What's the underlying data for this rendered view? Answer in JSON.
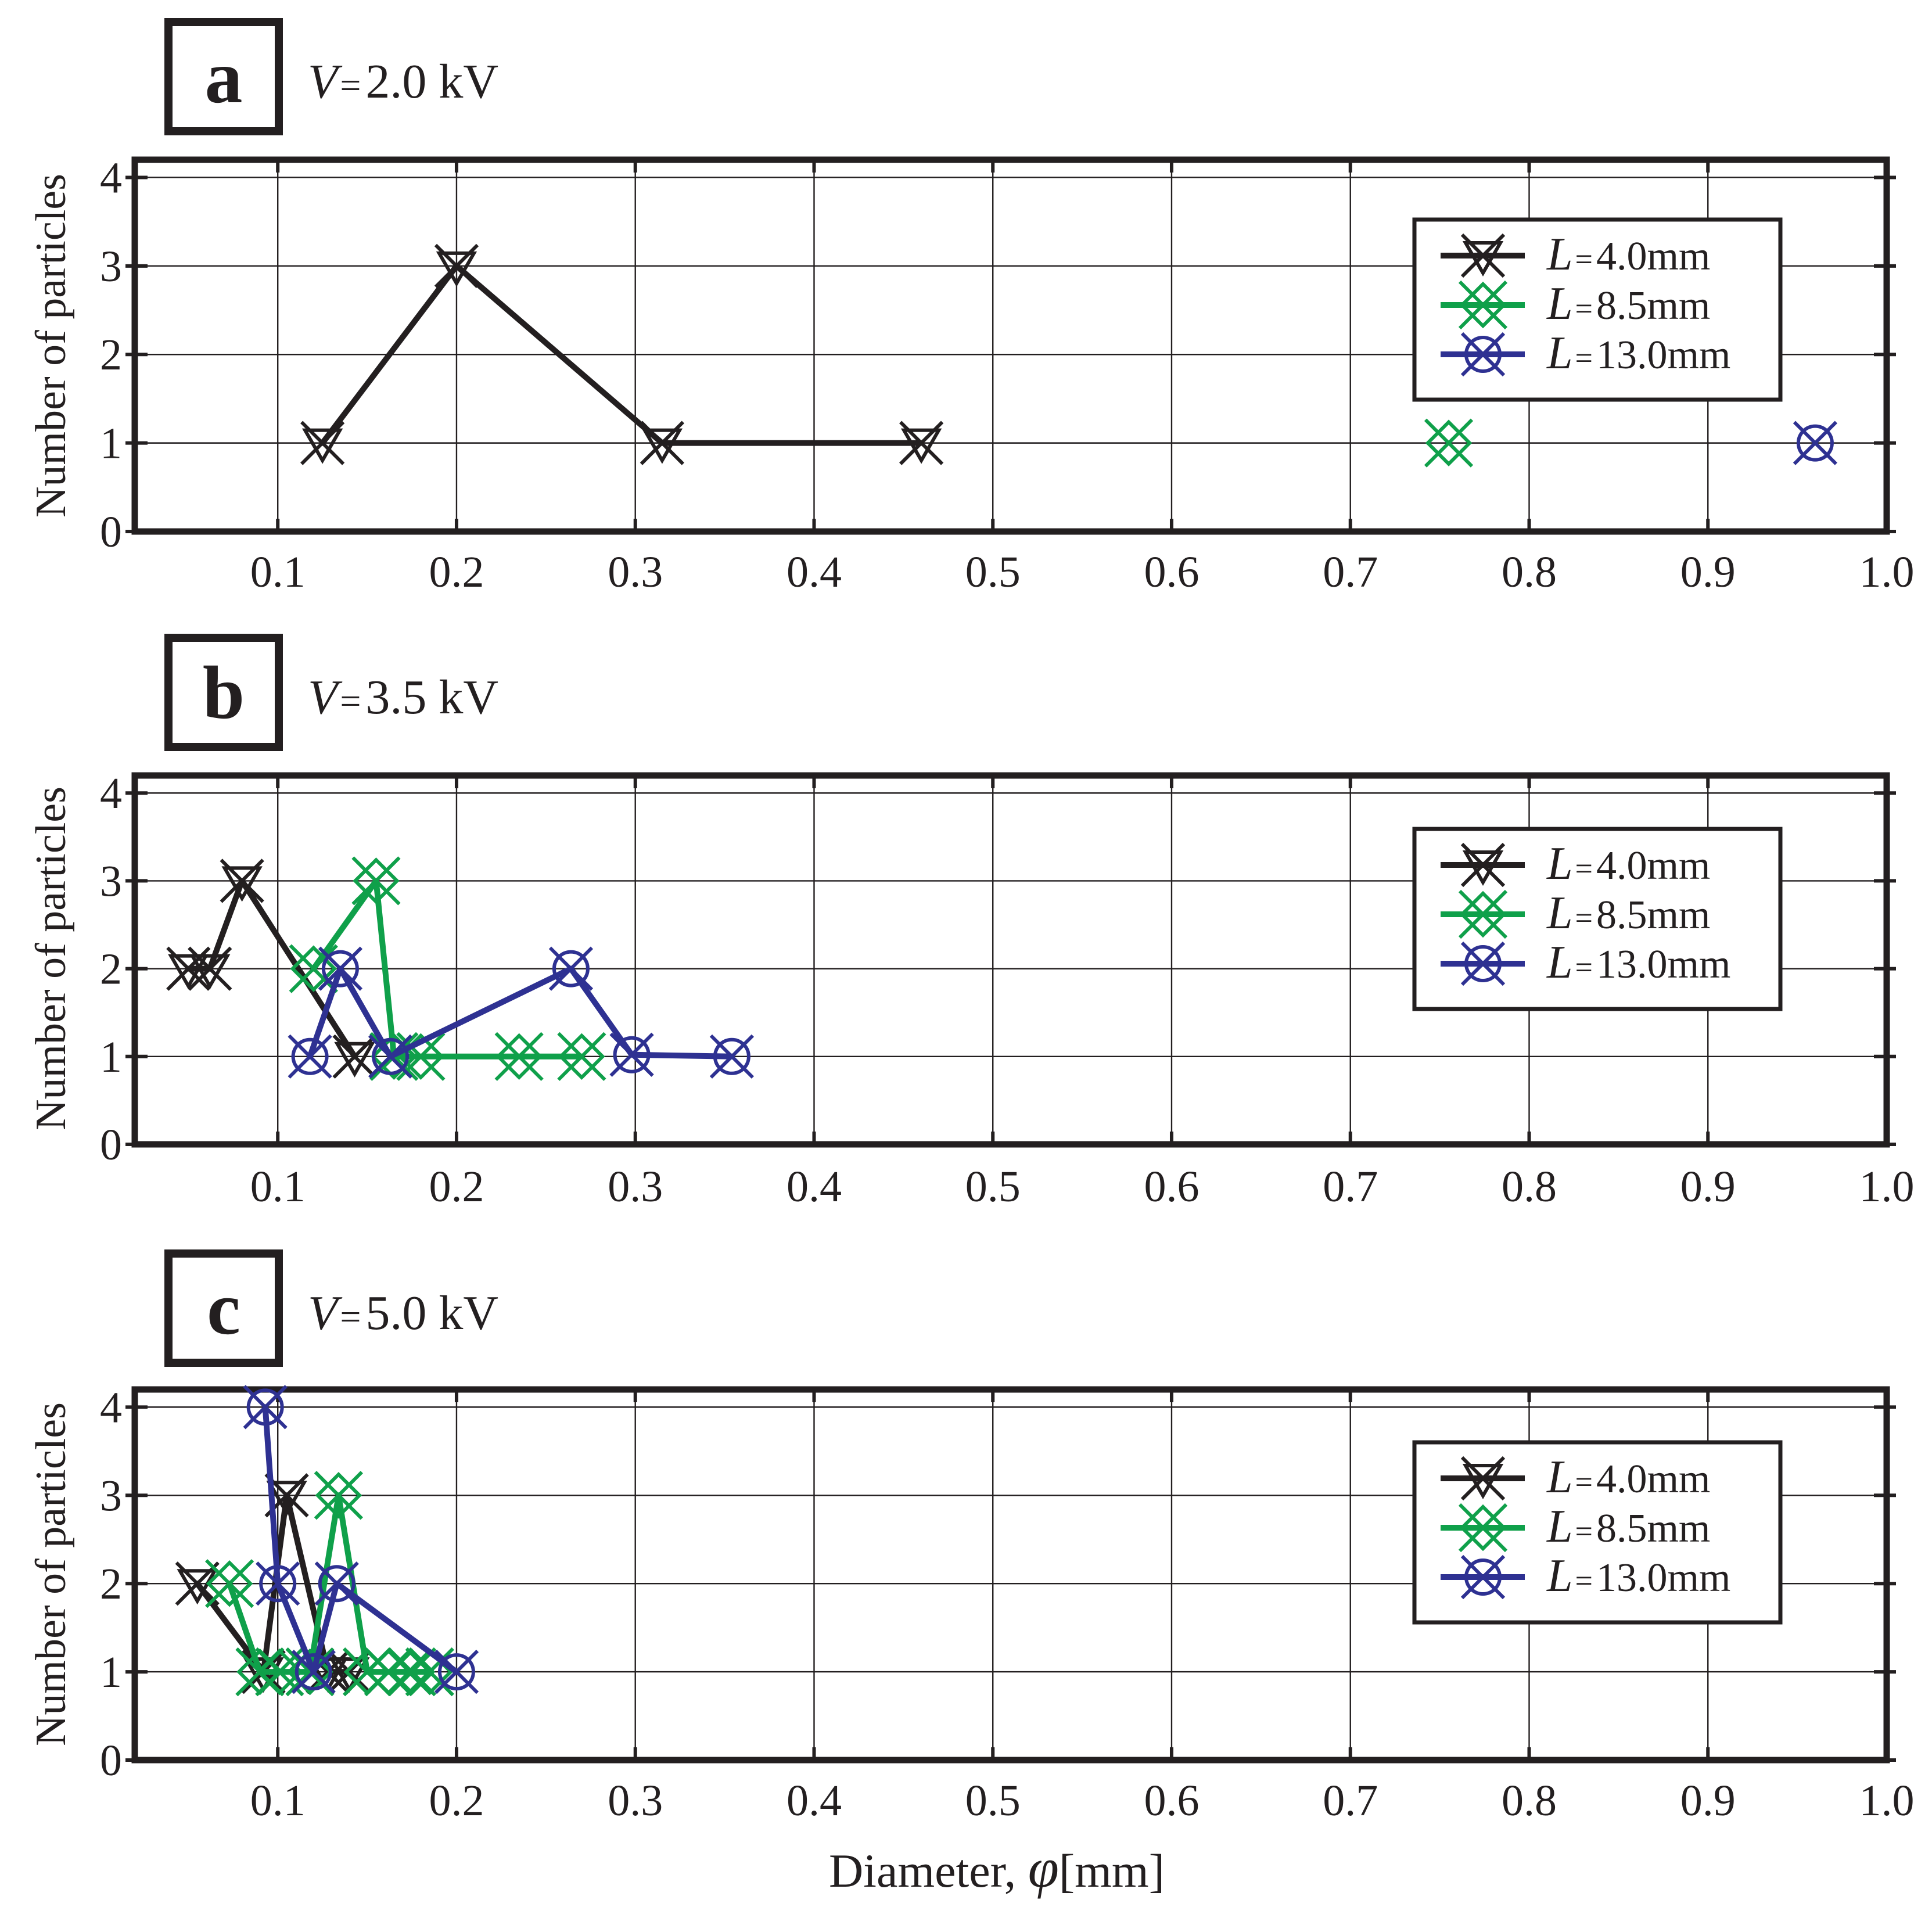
{
  "figure": {
    "xlabel_prefix": "Diameter, ",
    "xlabel_symbol": "φ",
    "xlabel_unit": "[mm]"
  },
  "colors": {
    "L4": "#231f20",
    "L8": "#0fa04a",
    "L13": "#2e3192"
  },
  "chart_data": [
    {
      "type": "line",
      "panel_label": "a",
      "voltage_symbol": "V",
      "voltage_eq": "=",
      "voltage_value": "2.0 kV",
      "ylabel": "Number of particles",
      "xlim": [
        0.02,
        1.0
      ],
      "ylim": [
        0,
        4.2
      ],
      "xticks": [
        "0.1",
        "0.2",
        "0.3",
        "0.4",
        "0.5",
        "0.6",
        "0.7",
        "0.8",
        "0.9",
        "1.0"
      ],
      "yticks": [
        "0",
        "1",
        "2",
        "3",
        "4"
      ],
      "grid": true,
      "legend_position": "top-right",
      "series": [
        {
          "name_symbol": "L",
          "name_eq": "=",
          "name_value": "4.0mm",
          "color": "#231f20",
          "marker": "star-x",
          "x": [
            0.125,
            0.2,
            0.315,
            0.46
          ],
          "y": [
            1,
            3,
            1,
            1
          ]
        },
        {
          "name_symbol": "L",
          "name_eq": "=",
          "name_value": "8.5mm",
          "color": "#0fa04a",
          "marker": "diamond-x",
          "x": [
            0.755
          ],
          "y": [
            1
          ]
        },
        {
          "name_symbol": "L",
          "name_eq": "=",
          "name_value": "13.0mm",
          "color": "#2e3192",
          "marker": "circle-x",
          "x": [
            0.96
          ],
          "y": [
            1
          ]
        }
      ]
    },
    {
      "type": "line",
      "panel_label": "b",
      "voltage_symbol": "V",
      "voltage_eq": "=",
      "voltage_value": "3.5 kV",
      "ylabel": "Number of particles",
      "xlim": [
        0.02,
        1.0
      ],
      "ylim": [
        0,
        4.2
      ],
      "xticks": [
        "0.1",
        "0.2",
        "0.3",
        "0.4",
        "0.5",
        "0.6",
        "0.7",
        "0.8",
        "0.9",
        "1.0"
      ],
      "yticks": [
        "0",
        "1",
        "2",
        "3",
        "4"
      ],
      "grid": true,
      "legend_position": "top-right",
      "series": [
        {
          "name_symbol": "L",
          "name_eq": "=",
          "name_value": "4.0mm",
          "color": "#231f20",
          "marker": "star-x",
          "x": [
            0.05,
            0.062,
            0.08,
            0.143
          ],
          "y": [
            2,
            2,
            3,
            1
          ]
        },
        {
          "name_symbol": "L",
          "name_eq": "=",
          "name_value": "8.5mm",
          "color": "#0fa04a",
          "marker": "diamond-x",
          "x": [
            0.12,
            0.155,
            0.165,
            0.18,
            0.235,
            0.27
          ],
          "y": [
            2,
            3,
            1,
            1,
            1,
            1
          ]
        },
        {
          "name_symbol": "L",
          "name_eq": "=",
          "name_value": "13.0mm",
          "color": "#2e3192",
          "marker": "circle-x",
          "x": [
            0.118,
            0.135,
            0.163,
            0.264,
            0.298,
            0.354
          ],
          "y": [
            1,
            2,
            1,
            2,
            1.02,
            1
          ]
        }
      ]
    },
    {
      "type": "line",
      "panel_label": "c",
      "voltage_symbol": "V",
      "voltage_eq": "=",
      "voltage_value": "5.0 kV",
      "ylabel": "Number of particles",
      "xlim": [
        0.02,
        1.0
      ],
      "ylim": [
        0,
        4.2
      ],
      "xticks": [
        "0.1",
        "0.2",
        "0.3",
        "0.4",
        "0.5",
        "0.6",
        "0.7",
        "0.8",
        "0.9",
        "1.0"
      ],
      "yticks": [
        "0",
        "1",
        "2",
        "3",
        "4"
      ],
      "grid": true,
      "legend_position": "top-right",
      "series": [
        {
          "name_symbol": "L",
          "name_eq": "=",
          "name_value": "4.0mm",
          "color": "#231f20",
          "marker": "star-x",
          "x": [
            0.055,
            0.092,
            0.105,
            0.128,
            0.14
          ],
          "y": [
            2,
            1,
            3,
            1,
            1
          ]
        },
        {
          "name_symbol": "L",
          "name_eq": "=",
          "name_value": "8.5mm",
          "color": "#0fa04a",
          "marker": "diamond-x",
          "x": [
            0.073,
            0.09,
            0.101,
            0.118,
            0.134,
            0.15,
            0.162,
            0.175,
            0.185
          ],
          "y": [
            2,
            1,
            1,
            1,
            3,
            1,
            1,
            1,
            1
          ]
        },
        {
          "name_symbol": "L",
          "name_eq": "=",
          "name_value": "13.0mm",
          "color": "#2e3192",
          "marker": "circle-x",
          "x": [
            0.093,
            0.1,
            0.12,
            0.133,
            0.2
          ],
          "y": [
            4,
            2,
            1,
            2,
            1
          ]
        }
      ]
    }
  ]
}
